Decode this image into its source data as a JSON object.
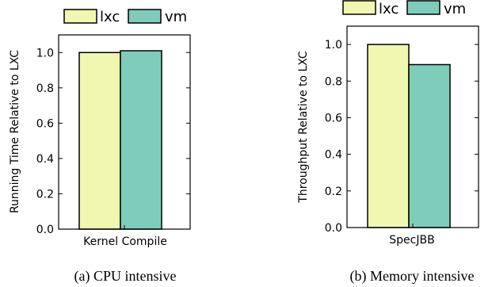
{
  "chart_data": [
    {
      "type": "bar",
      "categories": [
        "Kernel Compile"
      ],
      "series": [
        {
          "name": "lxc",
          "values": [
            1.0
          ]
        },
        {
          "name": "vm",
          "values": [
            1.01
          ]
        }
      ],
      "xlabel": "",
      "ylabel": "Running Time Relative to LXC",
      "ylim": [
        0,
        1.1
      ],
      "yticks": [
        "0.0",
        "0.2",
        "0.4",
        "0.6",
        "0.8",
        "1.0"
      ],
      "caption": "(a) CPU intensive",
      "legend": "top",
      "grid": false
    },
    {
      "type": "bar",
      "categories": [
        "SpecJBB"
      ],
      "series": [
        {
          "name": "lxc",
          "values": [
            1.0
          ]
        },
        {
          "name": "vm",
          "values": [
            0.89
          ]
        }
      ],
      "xlabel": "",
      "ylabel": "Throughput Relative to LXC",
      "ylim": [
        0,
        1.1
      ],
      "yticks": [
        "0.0",
        "0.2",
        "0.4",
        "0.6",
        "0.8",
        "1.0"
      ],
      "caption": "(b) Memory intensive",
      "legend": "top",
      "grid": false
    }
  ],
  "colors": {
    "lxc": "#f0f7b0",
    "vm": "#7ecdbb"
  }
}
